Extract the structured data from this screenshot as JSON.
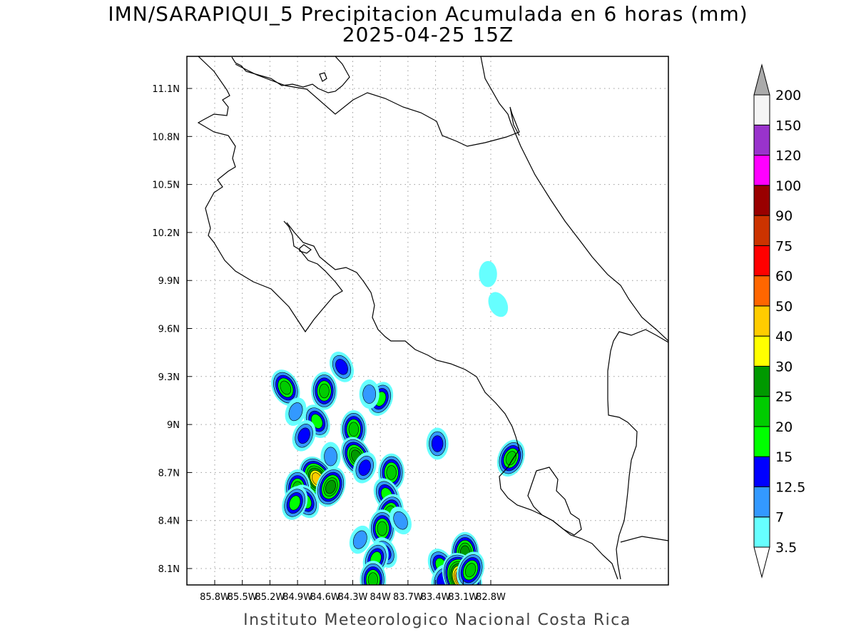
{
  "title": {
    "line1": "IMN/SARAPIQUI_5 Precipitacion Acumulada en 6 horas (mm)",
    "line2": "2025-04-25 15Z"
  },
  "footer": "Instituto Meteorologico Nacional Costa Rica",
  "map": {
    "lon_range": [
      -86.0,
      -83.0
    ],
    "lat_range": [
      8.0,
      11.2
    ],
    "lon_ticks": [
      {
        "label": "85.8W",
        "value": -85.8
      },
      {
        "label": "85.5W",
        "value": -85.5
      },
      {
        "label": "85.2W",
        "value": -85.2
      },
      {
        "label": "84.9W",
        "value": -84.9
      },
      {
        "label": "84.6W",
        "value": -84.6
      },
      {
        "label": "84.3W",
        "value": -84.3
      },
      {
        "label": "84W",
        "value": -84.0
      },
      {
        "label": "83.7W",
        "value": -83.7
      },
      {
        "label": "83.4W",
        "value": -83.4
      },
      {
        "label": "83.1W",
        "value": -83.1
      },
      {
        "label": "82.8W",
        "value": -82.8
      }
    ],
    "lat_ticks": [
      {
        "label": "11.1N",
        "value": 11.1
      },
      {
        "label": "10.8N",
        "value": 10.8
      },
      {
        "label": "10.5N",
        "value": 10.5
      },
      {
        "label": "10.2N",
        "value": 10.2
      },
      {
        "label": "9.9N",
        "value": 9.9
      },
      {
        "label": "9.6N",
        "value": 9.6
      },
      {
        "label": "9.3N",
        "value": 9.3
      },
      {
        "label": "9N",
        "value": 9.0
      },
      {
        "label": "8.7N",
        "value": 8.7
      },
      {
        "label": "8.4N",
        "value": 8.4
      },
      {
        "label": "8.1N",
        "value": 8.1
      }
    ],
    "grid": true
  },
  "colorbar": {
    "levels": [
      {
        "label": "3.5",
        "color": "#66ffff"
      },
      {
        "label": "7",
        "color": "#3399ff"
      },
      {
        "label": "12.5",
        "color": "#0000ff"
      },
      {
        "label": "15",
        "color": "#00ff00"
      },
      {
        "label": "20",
        "color": "#00cc00"
      },
      {
        "label": "25",
        "color": "#009900"
      },
      {
        "label": "30",
        "color": "#ffff00"
      },
      {
        "label": "40",
        "color": "#ffcc00"
      },
      {
        "label": "50",
        "color": "#ff6600"
      },
      {
        "label": "60",
        "color": "#ff0000"
      },
      {
        "label": "75",
        "color": "#cc3300"
      },
      {
        "label": "90",
        "color": "#990000"
      },
      {
        "label": "100",
        "color": "#ff00ff"
      },
      {
        "label": "120",
        "color": "#9933cc"
      },
      {
        "label": "150",
        "color": "#f5f5f5"
      },
      {
        "label": "200",
        "color": "#aaaaaa"
      }
    ],
    "lower_arrow_color": "#ffffff",
    "upper_arrow_color": "#aaaaaa"
  },
  "rain_cells": [
    {
      "lon": -85.03,
      "lat": 9.23,
      "max": 20
    },
    {
      "lon": -84.92,
      "lat": 9.08,
      "max": 7
    },
    {
      "lon": -84.61,
      "lat": 9.21,
      "max": 20
    },
    {
      "lon": -84.42,
      "lat": 9.36,
      "max": 12.5
    },
    {
      "lon": -84.0,
      "lat": 9.16,
      "max": 15
    },
    {
      "lon": -84.12,
      "lat": 9.19,
      "max": 7
    },
    {
      "lon": -84.69,
      "lat": 9.02,
      "max": 15
    },
    {
      "lon": -84.83,
      "lat": 8.93,
      "max": 12.5
    },
    {
      "lon": -84.29,
      "lat": 8.97,
      "max": 20
    },
    {
      "lon": -84.26,
      "lat": 8.8,
      "max": 25
    },
    {
      "lon": -84.17,
      "lat": 8.73,
      "max": 12.5
    },
    {
      "lon": -84.54,
      "lat": 8.8,
      "max": 7
    },
    {
      "lon": -84.69,
      "lat": 8.66,
      "max": 40
    },
    {
      "lon": -84.54,
      "lat": 8.61,
      "max": 25
    },
    {
      "lon": -84.9,
      "lat": 8.6,
      "max": 20
    },
    {
      "lon": -84.81,
      "lat": 8.52,
      "max": 15
    },
    {
      "lon": -84.93,
      "lat": 8.51,
      "max": 15
    },
    {
      "lon": -83.88,
      "lat": 8.7,
      "max": 20
    },
    {
      "lon": -83.93,
      "lat": 8.56,
      "max": 15
    },
    {
      "lon": -83.9,
      "lat": 8.45,
      "max": 20
    },
    {
      "lon": -83.98,
      "lat": 8.35,
      "max": 20
    },
    {
      "lon": -83.95,
      "lat": 8.2,
      "max": 12.5
    },
    {
      "lon": -84.05,
      "lat": 8.16,
      "max": 15
    },
    {
      "lon": -84.08,
      "lat": 8.03,
      "max": 20
    },
    {
      "lon": -83.78,
      "lat": 8.4,
      "max": 7
    },
    {
      "lon": -84.22,
      "lat": 8.28,
      "max": 7
    },
    {
      "lon": -83.38,
      "lat": 8.88,
      "max": 12.5
    },
    {
      "lon": -83.34,
      "lat": 8.12,
      "max": 15
    },
    {
      "lon": -83.32,
      "lat": 8.03,
      "max": 12.5
    },
    {
      "lon": -83.08,
      "lat": 8.2,
      "max": 25
    },
    {
      "lon": -83.11,
      "lat": 8.04,
      "max": 60
    },
    {
      "lon": -83.02,
      "lat": 8.09,
      "max": 20
    },
    {
      "lon": -82.83,
      "lat": 9.94,
      "max": 3.5
    },
    {
      "lon": -82.72,
      "lat": 9.75,
      "max": 3.5
    },
    {
      "lon": -82.58,
      "lat": 8.79,
      "max": 20
    }
  ]
}
